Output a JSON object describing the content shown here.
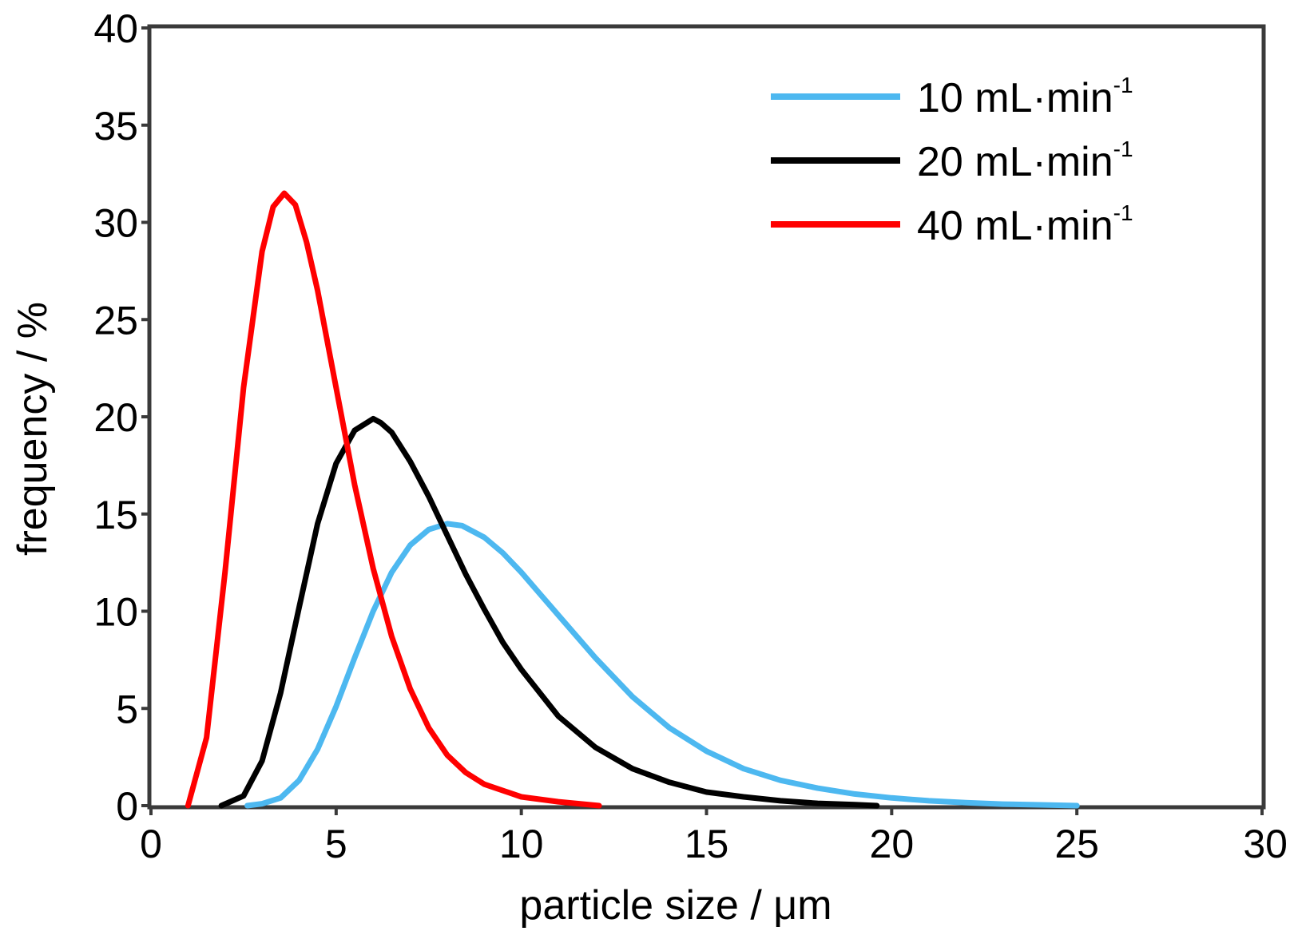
{
  "chart_data": {
    "type": "line",
    "xlabel": "particle size / μm",
    "ylabel": "frequency / %",
    "xlim": [
      0,
      30
    ],
    "ylim": [
      0,
      40
    ],
    "xticks": [
      0,
      5,
      10,
      15,
      20,
      25,
      30
    ],
    "yticks": [
      0,
      5,
      10,
      15,
      20,
      25,
      30,
      35,
      40
    ],
    "grid": false,
    "legend_position": "top-right",
    "series": [
      {
        "name": "10 mL·min",
        "name_superscript": "-1",
        "color": "#4db8f0",
        "x": [
          2.6,
          3.0,
          3.5,
          4.0,
          4.5,
          5.0,
          5.5,
          6.0,
          6.5,
          7.0,
          7.5,
          8.0,
          8.4,
          9.0,
          9.5,
          10.0,
          10.5,
          11.0,
          11.5,
          12.0,
          13.0,
          14.0,
          15.0,
          16.0,
          17.0,
          18.0,
          19.0,
          20.0,
          21.0,
          22.0,
          23.0,
          24.0,
          25.0
        ],
        "y": [
          0.0,
          0.1,
          0.4,
          1.3,
          2.9,
          5.1,
          7.6,
          10.0,
          12.0,
          13.4,
          14.2,
          14.5,
          14.4,
          13.8,
          13.0,
          12.0,
          10.9,
          9.8,
          8.7,
          7.6,
          5.6,
          4.0,
          2.8,
          1.9,
          1.3,
          0.9,
          0.6,
          0.4,
          0.25,
          0.15,
          0.08,
          0.04,
          0.0
        ]
      },
      {
        "name": "20 mL·min",
        "name_superscript": "-1",
        "color": "#000000",
        "x": [
          1.9,
          2.5,
          3.0,
          3.5,
          4.0,
          4.5,
          5.0,
          5.5,
          6.0,
          6.2,
          6.5,
          7.0,
          7.5,
          8.0,
          8.5,
          9.0,
          9.5,
          10.0,
          11.0,
          12.0,
          13.0,
          14.0,
          15.0,
          16.0,
          17.0,
          18.0,
          19.0,
          19.6
        ],
        "y": [
          0.0,
          0.5,
          2.3,
          5.8,
          10.2,
          14.5,
          17.6,
          19.3,
          19.9,
          19.7,
          19.2,
          17.7,
          15.9,
          13.9,
          11.9,
          10.1,
          8.4,
          7.0,
          4.6,
          3.0,
          1.9,
          1.2,
          0.7,
          0.45,
          0.25,
          0.12,
          0.05,
          0.0
        ]
      },
      {
        "name": "40 mL·min",
        "name_superscript": "-1",
        "color": "#ff0000",
        "x": [
          1.0,
          1.5,
          2.0,
          2.5,
          3.0,
          3.3,
          3.6,
          3.9,
          4.2,
          4.5,
          5.0,
          5.5,
          6.0,
          6.5,
          7.0,
          7.5,
          8.0,
          8.5,
          9.0,
          10.0,
          11.0,
          12.1
        ],
        "y": [
          0.0,
          3.5,
          12.0,
          21.5,
          28.5,
          30.8,
          31.5,
          30.9,
          29.0,
          26.5,
          21.5,
          16.5,
          12.2,
          8.7,
          6.0,
          4.0,
          2.6,
          1.7,
          1.1,
          0.45,
          0.2,
          0.0
        ]
      }
    ]
  }
}
